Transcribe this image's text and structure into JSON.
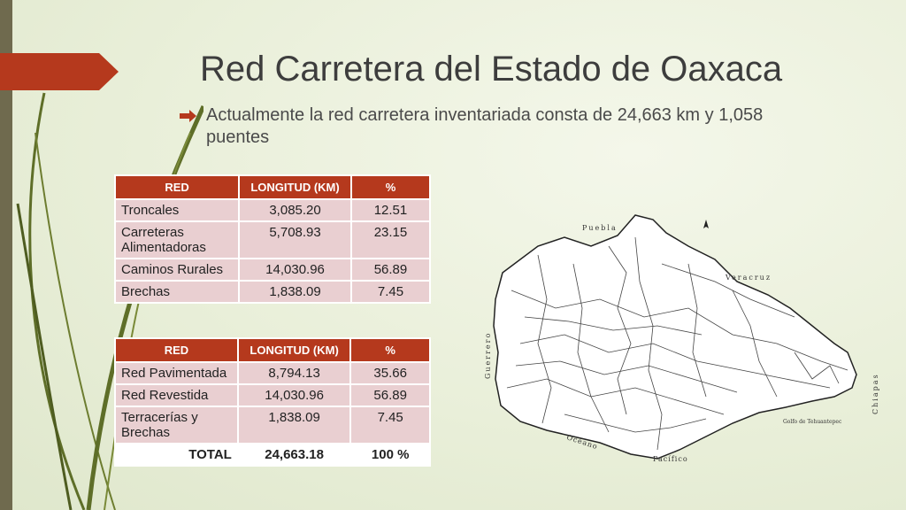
{
  "slide": {
    "title": "Red Carretera del Estado de Oaxaca",
    "bullet": "Actualmente la red carretera inventariada consta de 24,663 km y 1,058 puentes",
    "accent_color": "#b5391d",
    "side_bar_color": "#6f6a4e"
  },
  "table1": {
    "headers": [
      "RED",
      "LONGITUD (KM)",
      "%"
    ],
    "rows": [
      {
        "name": "Troncales",
        "length": "3,085.20",
        "pct": "12.51"
      },
      {
        "name": "Carreteras Alimentadoras",
        "length": "5,708.93",
        "pct": "23.15"
      },
      {
        "name": "Caminos Rurales",
        "length": "14,030.96",
        "pct": "56.89"
      },
      {
        "name": "Brechas",
        "length": "1,838.09",
        "pct": "7.45"
      }
    ]
  },
  "table2": {
    "headers": [
      "RED",
      "LONGITUD (KM)",
      "%"
    ],
    "rows": [
      {
        "name": "Red Pavimentada",
        "length": "8,794.13",
        "pct": "35.66"
      },
      {
        "name": "Red Revestida",
        "length": "14,030.96",
        "pct": "56.89"
      },
      {
        "name": "Terracerías y Brechas",
        "length": "1,838.09",
        "pct": "7.45"
      }
    ],
    "total": {
      "label": "TOTAL",
      "length": "24,663.18",
      "pct": "100 %"
    }
  },
  "map": {
    "labels": {
      "north": "Puebla",
      "northeast": "Veracruz",
      "west": "Guerrero",
      "east": "Chiapas",
      "gulf": "Golfo de Tehuantepec",
      "ocean": "Océano",
      "pacific": "Pacífico"
    }
  }
}
